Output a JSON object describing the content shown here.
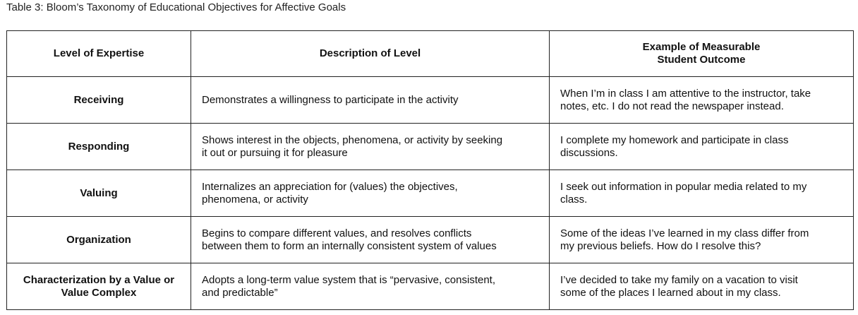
{
  "caption": "Table 3: Bloom’s Taxonomy of Educational Objectives for Affective Goals",
  "table": {
    "headers": [
      "Level of Expertise",
      "Description of Level",
      "Example of Measurable\nStudent Outcome"
    ],
    "rows": [
      {
        "level": "Receiving",
        "description": "Demonstrates a willingness to participate in the activity",
        "example": "When I’m in class I am attentive to the instructor, take\nnotes, etc. I do not read the newspaper instead."
      },
      {
        "level": "Responding",
        "description": "Shows interest in the objects, phenomena, or activity by seeking\nit out or pursuing it for pleasure",
        "example": "I complete my homework and participate in class\ndiscussions."
      },
      {
        "level": "Valuing",
        "description": "Internalizes an appreciation for (values) the objectives,\nphenomena, or activity",
        "example": "I seek out information in popular media related to my\nclass."
      },
      {
        "level": "Organization",
        "description": "Begins to compare different values, and resolves conflicts\nbetween them to form an internally consistent system of values",
        "example": "Some of the ideas I’ve learned in my class differ from\nmy previous beliefs. How do I resolve this?"
      },
      {
        "level": "Characterization by a Value or\nValue Complex",
        "description": "Adopts a long-term value system that is “pervasive, consistent,\nand predictable”",
        "example": "I’ve decided to take my family on a vacation to visit\nsome of the places I learned about in my class."
      }
    ]
  }
}
